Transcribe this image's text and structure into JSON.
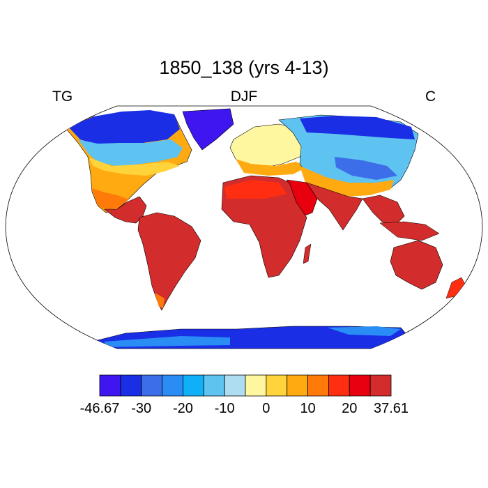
{
  "title": "1850_138 (yrs 4-13)",
  "subtitle_left": "TG",
  "subtitle_center": "DJF",
  "subtitle_right": "C",
  "colorbar": {
    "colors": [
      "#3f15f0",
      "#1a2ee6",
      "#3b6ee8",
      "#2a8cf5",
      "#10b0f8",
      "#5ec3f0",
      "#aedcf0",
      "#fff7a0",
      "#ffd43a",
      "#ffaa10",
      "#ff7a08",
      "#ff2e10",
      "#e8000e",
      "#d22c2c"
    ],
    "labels": [
      "-46.67",
      "-30",
      "-20",
      "-10",
      "0",
      "10",
      "20",
      "37.61"
    ]
  },
  "legend_values": {
    "min": -46.67,
    "max": 37.61,
    "unit": "C"
  },
  "map_style": {
    "ocean": "#ffffff",
    "coastline": "#000000"
  }
}
